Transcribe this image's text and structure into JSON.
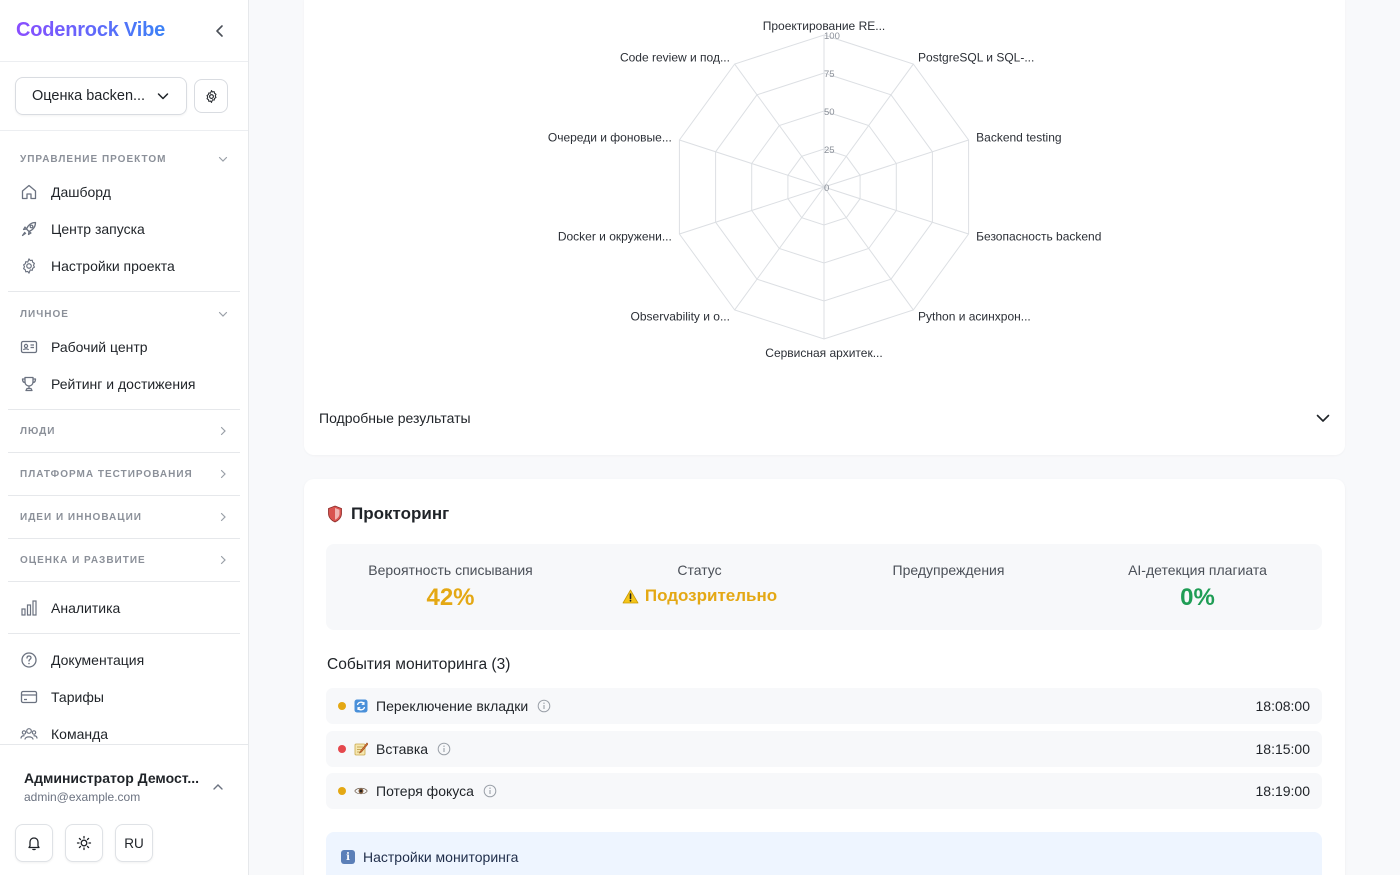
{
  "app": {
    "brand": "Codenrock Vibe"
  },
  "project": {
    "selected": "Оценка backen..."
  },
  "nav": {
    "section_project": "Управление проектом",
    "dashboard": "Дашборд",
    "launch_center": "Центр запуска",
    "project_settings": "Настройки проекта",
    "section_personal": "Личное",
    "workspace": "Рабочий центр",
    "rating": "Рейтинг и достижения",
    "section_people": "Люди",
    "section_testing": "Платформа тестирования",
    "section_ideas": "Идеи и инновации",
    "section_assessment": "Оценка и развитие",
    "analytics": "Аналитика",
    "documentation": "Документация",
    "pricing": "Тарифы",
    "team": "Команда"
  },
  "user": {
    "name": "Администратор Демост...",
    "email": "admin@example.com",
    "lang": "RU"
  },
  "radar": {
    "axes": [
      "Проектирование RE...",
      "PostgreSQL и SQL-...",
      "Backend testing",
      "Безопасность backend",
      "Python и асинхрон...",
      "Сервисная архитек...",
      "Observability и о...",
      "Docker и окружени...",
      "Очереди и фоновые...",
      "Code review и под..."
    ],
    "ticks": [
      "0",
      "25",
      "50",
      "75",
      "100"
    ]
  },
  "details": {
    "label": "Подробные результаты"
  },
  "proctoring": {
    "title": "Прокторинг",
    "cheat_label": "Вероятность списывания",
    "cheat_value": "42%",
    "status_label": "Статус",
    "status_value": "Подозрительно",
    "warnings_label": "Предупреждения",
    "ai_label": "AI-детекция плагиата",
    "ai_value": "0%",
    "colors": {
      "warning": "#e4a814",
      "success": "#1f9d55",
      "danger": "#e5484d"
    }
  },
  "events": {
    "title": "События мониторинга (3)",
    "items": [
      {
        "label": "Переключение вкладки",
        "time": "18:08:00",
        "status": "warning",
        "icon": "tab-switch-icon"
      },
      {
        "label": "Вставка",
        "time": "18:15:00",
        "status": "danger",
        "icon": "paste-icon"
      },
      {
        "label": "Потеря фокуса",
        "time": "18:19:00",
        "status": "warning",
        "icon": "eye-icon"
      }
    ]
  },
  "monitoring_settings": {
    "label": "Настройки мониторинга"
  }
}
